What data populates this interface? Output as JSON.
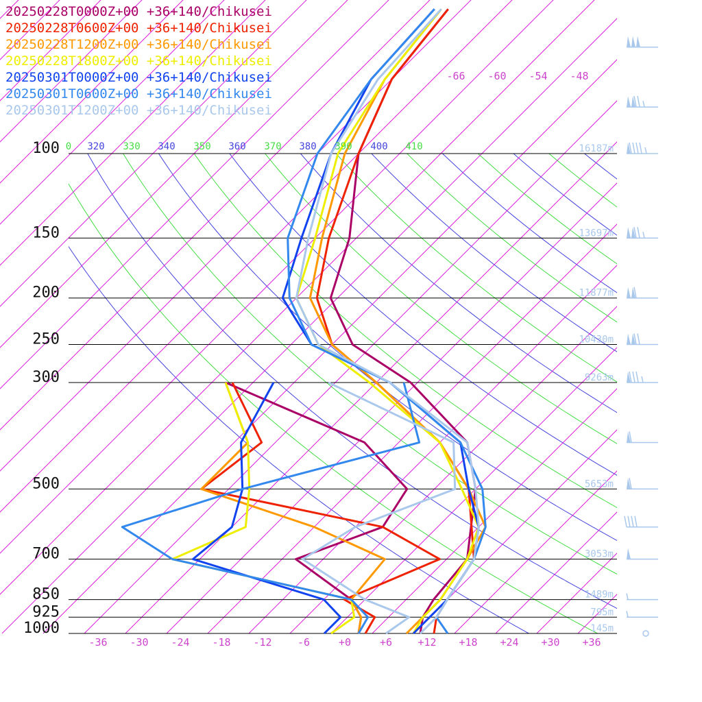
{
  "chart_data": {
    "type": "line",
    "subtype": "skew-T log-p sounding",
    "x_axis": {
      "unit": "degC",
      "ticks": [
        -36,
        -30,
        -24,
        -18,
        -12,
        -6,
        0,
        6,
        12,
        18,
        24,
        30,
        36
      ],
      "tick_labels": [
        "-36",
        "-30",
        "-24",
        "-18",
        "-12",
        "-6",
        "+0",
        "+6",
        "+12",
        "+18",
        "+24",
        "+30",
        "+36"
      ]
    },
    "y_axis": {
      "unit": "hPa",
      "scale": "log",
      "ticks": [
        100,
        150,
        200,
        250,
        300,
        500,
        700,
        850,
        925,
        1000
      ],
      "tick_labels": [
        "100",
        "150",
        "200",
        "250",
        "300",
        "500",
        "700",
        "850",
        "925",
        "1000"
      ]
    },
    "skewed_isotherm_labels": [
      "-66",
      "-60",
      "-54",
      "-48"
    ],
    "theta_labels": [
      "0",
      "320",
      "330",
      "340",
      "350",
      "360",
      "370",
      "380",
      "390",
      "400",
      "410"
    ],
    "height_labels": [
      {
        "p": 100,
        "label": "16187m"
      },
      {
        "p": 150,
        "label": "13697m"
      },
      {
        "p": 200,
        "label": "11877m"
      },
      {
        "p": 250,
        "label": "10430m"
      },
      {
        "p": 300,
        "label": "9263m"
      },
      {
        "p": 500,
        "label": "5653m"
      },
      {
        "p": 700,
        "label": "3053m"
      },
      {
        "p": 850,
        "label": "1489m"
      },
      {
        "p": 925,
        "label": "795m"
      },
      {
        "p": 1000,
        "label": "145m"
      }
    ],
    "series": [
      {
        "name": "20250228T0000Z+00 +36+140/Chikusei",
        "color": "#aa0066",
        "temperature": [
          [
            1000,
            11
          ],
          [
            925,
            9
          ],
          [
            850,
            8
          ],
          [
            700,
            7
          ],
          [
            500,
            -2
          ],
          [
            400,
            -10
          ],
          [
            300,
            -27
          ],
          [
            250,
            -41
          ],
          [
            200,
            -51
          ],
          [
            150,
            -57
          ],
          [
            100,
            -68
          ],
          [
            70,
            -74
          ],
          [
            50,
            -76
          ]
        ],
        "dewpoint": [
          [
            1000,
            2
          ],
          [
            925,
            0
          ],
          [
            850,
            -4
          ],
          [
            700,
            -18
          ],
          [
            600,
            -10
          ],
          [
            500,
            -12
          ],
          [
            400,
            -25
          ],
          [
            300,
            -54
          ]
        ]
      },
      {
        "name": "20250228T0600Z+00 +36+140/Chikusei",
        "color": "#ee2200",
        "temperature": [
          [
            1000,
            13
          ],
          [
            925,
            11
          ],
          [
            850,
            10
          ],
          [
            700,
            8
          ],
          [
            500,
            -3
          ],
          [
            400,
            -14
          ],
          [
            300,
            -32
          ],
          [
            250,
            -44
          ],
          [
            200,
            -53
          ],
          [
            150,
            -60
          ],
          [
            100,
            -68
          ],
          [
            70,
            -74
          ],
          [
            50,
            -76
          ]
        ],
        "dewpoint": [
          [
            1000,
            3
          ],
          [
            925,
            2
          ],
          [
            850,
            -5
          ],
          [
            700,
            3
          ],
          [
            600,
            -10
          ],
          [
            500,
            -42
          ],
          [
            400,
            -40
          ],
          [
            300,
            -53
          ]
        ]
      },
      {
        "name": "20250228T1200Z+00 +36+140/Chikusei",
        "color": "#ff9900",
        "temperature": [
          [
            1000,
            9
          ],
          [
            925,
            9
          ],
          [
            850,
            9
          ],
          [
            700,
            7
          ],
          [
            600,
            5
          ],
          [
            500,
            -3
          ],
          [
            400,
            -14
          ],
          [
            300,
            -32
          ],
          [
            250,
            -44
          ],
          [
            200,
            -54
          ],
          [
            150,
            -61
          ],
          [
            100,
            -70
          ],
          [
            70,
            -75
          ],
          [
            50,
            -77
          ]
        ],
        "dewpoint": [
          [
            1000,
            2
          ],
          [
            925,
            0
          ],
          [
            850,
            -4
          ],
          [
            700,
            -5
          ],
          [
            600,
            -20
          ],
          [
            500,
            -42
          ],
          [
            400,
            -42
          ],
          [
            300,
            -54
          ]
        ]
      },
      {
        "name": "20250228T1800Z+00 +36+140/Chikusei",
        "color": "#eeee00",
        "temperature": [
          [
            1000,
            10
          ],
          [
            925,
            9
          ],
          [
            850,
            9
          ],
          [
            700,
            7
          ],
          [
            600,
            4
          ],
          [
            500,
            -4
          ],
          [
            400,
            -14
          ],
          [
            300,
            -33
          ],
          [
            250,
            -46
          ],
          [
            200,
            -56
          ],
          [
            150,
            -62
          ],
          [
            100,
            -71
          ],
          [
            70,
            -75
          ],
          [
            50,
            -77
          ]
        ],
        "dewpoint": [
          [
            1000,
            -2
          ],
          [
            925,
            -1
          ],
          [
            850,
            -4
          ],
          [
            700,
            -36
          ],
          [
            600,
            -30
          ],
          [
            500,
            -35
          ],
          [
            400,
            -42
          ],
          [
            300,
            -54
          ]
        ]
      },
      {
        "name": "20250301T0000Z+00 +36+140/Chikusei",
        "color": "#1144ee",
        "temperature": [
          [
            1000,
            10
          ],
          [
            925,
            10
          ],
          [
            850,
            10
          ],
          [
            700,
            8
          ],
          [
            600,
            4
          ],
          [
            500,
            -3
          ],
          [
            400,
            -11
          ],
          [
            300,
            -30
          ],
          [
            250,
            -47
          ],
          [
            200,
            -58
          ],
          [
            150,
            -64
          ],
          [
            100,
            -72
          ],
          [
            70,
            -77
          ],
          [
            50,
            -78
          ]
        ],
        "dewpoint": [
          [
            1000,
            -3
          ],
          [
            925,
            -3
          ],
          [
            850,
            -8
          ],
          [
            700,
            -33
          ],
          [
            600,
            -32
          ],
          [
            500,
            -36
          ],
          [
            400,
            -43
          ],
          [
            300,
            -47
          ]
        ]
      },
      {
        "name": "20250301T0600Z+00 +36+140/Chikusei",
        "color": "#3388ee",
        "temperature": [
          [
            1000,
            15
          ],
          [
            925,
            11
          ],
          [
            850,
            10
          ],
          [
            700,
            8
          ],
          [
            600,
            5
          ],
          [
            500,
            -1
          ],
          [
            400,
            -11
          ],
          [
            300,
            -30
          ],
          [
            250,
            -47
          ],
          [
            200,
            -57
          ],
          [
            150,
            -66
          ],
          [
            100,
            -74
          ],
          [
            70,
            -77
          ],
          [
            50,
            -78
          ]
        ],
        "dewpoint": [
          [
            1000,
            2
          ],
          [
            925,
            1
          ],
          [
            850,
            -4
          ],
          [
            700,
            -36
          ],
          [
            600,
            -48
          ],
          [
            500,
            -36
          ],
          [
            400,
            -17
          ],
          [
            300,
            -28
          ]
        ]
      },
      {
        "name": "20250301T1200Z+00 +36+140/Chikusei",
        "color": "#a9c8ec",
        "temperature": [
          [
            1000,
            11
          ],
          [
            925,
            11
          ],
          [
            850,
            10
          ],
          [
            700,
            8
          ],
          [
            600,
            4
          ],
          [
            500,
            -2
          ],
          [
            400,
            -10
          ],
          [
            300,
            -30
          ],
          [
            250,
            -46
          ],
          [
            200,
            -56
          ],
          [
            150,
            -63
          ],
          [
            100,
            -72
          ],
          [
            70,
            -76
          ],
          [
            50,
            -77
          ]
        ],
        "dewpoint": [
          [
            1000,
            6
          ],
          [
            925,
            7
          ],
          [
            850,
            -2
          ],
          [
            700,
            -17
          ],
          [
            600,
            -14
          ],
          [
            500,
            -5
          ],
          [
            400,
            -12
          ],
          [
            300,
            -39
          ]
        ]
      }
    ],
    "wind_barbs": [
      {
        "p": 60,
        "dir": 280,
        "speed_kt": 150
      },
      {
        "p": 80,
        "dir": 280,
        "speed_kt": 125
      },
      {
        "p": 100,
        "dir": 280,
        "speed_kt": 95
      },
      {
        "p": 150,
        "dir": 280,
        "speed_kt": 125
      },
      {
        "p": 200,
        "dir": 280,
        "speed_kt": 110
      },
      {
        "p": 250,
        "dir": 280,
        "speed_kt": 120
      },
      {
        "p": 300,
        "dir": 280,
        "speed_kt": 85
      },
      {
        "p": 400,
        "dir": 280,
        "speed_kt": 60
      },
      {
        "p": 500,
        "dir": 280,
        "speed_kt": 60
      },
      {
        "p": 600,
        "dir": 280,
        "speed_kt": 40
      },
      {
        "p": 700,
        "dir": 280,
        "speed_kt": 50
      },
      {
        "p": 850,
        "dir": 230,
        "speed_kt": 5
      },
      {
        "p": 925,
        "dir": 220,
        "speed_kt": 5
      },
      {
        "p": 1000,
        "dir": 180,
        "speed_kt": 0
      }
    ],
    "grid": true
  }
}
